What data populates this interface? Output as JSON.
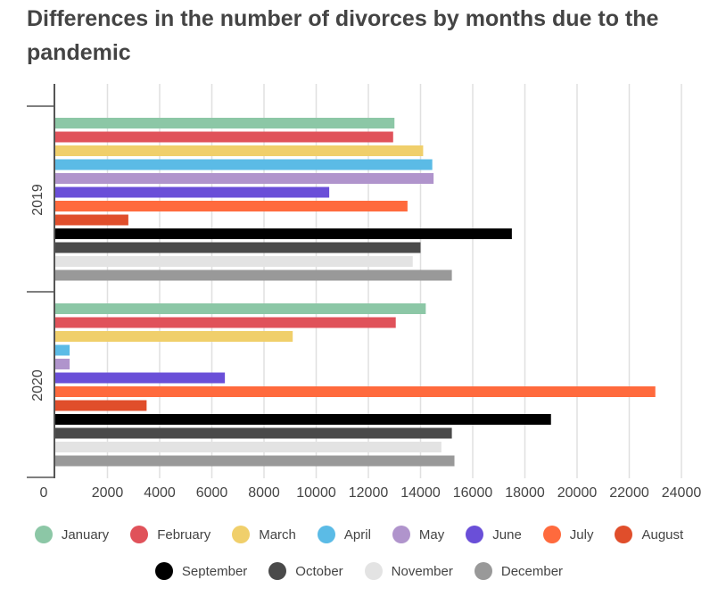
{
  "title": "Differences in the number of divorces by months due to the pandemic",
  "chart_data": {
    "type": "bar",
    "orientation": "horizontal",
    "groups": [
      "2019",
      "2020"
    ],
    "xlim": [
      0,
      24000
    ],
    "x_ticks": [
      "0",
      "2000",
      "4000",
      "6000",
      "8000",
      "10000",
      "12000",
      "14000",
      "16000",
      "18000",
      "20000",
      "22000",
      "24000"
    ],
    "grid": true,
    "legend_position": "bottom",
    "series": [
      {
        "name": "January",
        "color": "#8cc7a6",
        "values": [
          13000,
          14200
        ]
      },
      {
        "name": "February",
        "color": "#e0525a",
        "values": [
          12950,
          13050
        ]
      },
      {
        "name": "March",
        "color": "#f0cf6b",
        "values": [
          14100,
          9100
        ]
      },
      {
        "name": "April",
        "color": "#5bbbe6",
        "values": [
          14450,
          550
        ]
      },
      {
        "name": "May",
        "color": "#b094cc",
        "values": [
          14500,
          550
        ]
      },
      {
        "name": "June",
        "color": "#6a4fd8",
        "values": [
          10500,
          6500
        ]
      },
      {
        "name": "July",
        "color": "#ff6a3d",
        "values": [
          13500,
          23000
        ]
      },
      {
        "name": "August",
        "color": "#e04e2b",
        "values": [
          2800,
          3500
        ]
      },
      {
        "name": "September",
        "color": "#000000",
        "values": [
          17500,
          19000
        ]
      },
      {
        "name": "October",
        "color": "#4a4a4a",
        "values": [
          14000,
          15200
        ]
      },
      {
        "name": "November",
        "color": "#e3e3e3",
        "values": [
          13700,
          14800
        ]
      },
      {
        "name": "December",
        "color": "#999999",
        "values": [
          15200,
          15300
        ]
      }
    ]
  }
}
